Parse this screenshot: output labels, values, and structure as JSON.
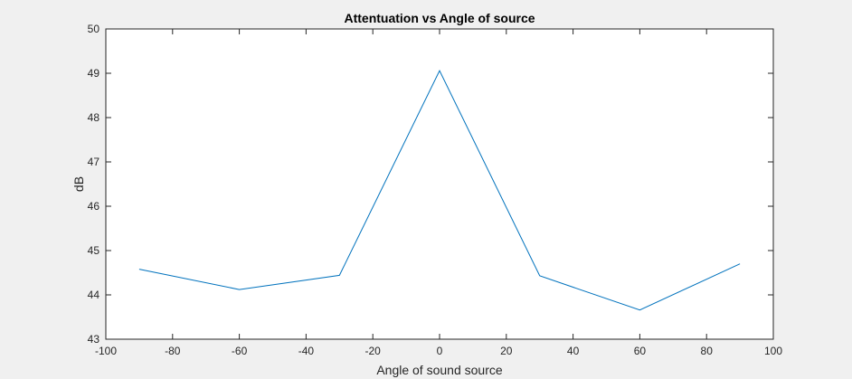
{
  "chart_data": {
    "type": "line",
    "title": "Attentuation vs Angle of source",
    "xlabel": "Angle of sound source",
    "ylabel": "dB",
    "xlim": [
      -100,
      100
    ],
    "ylim": [
      43,
      50
    ],
    "xticks": [
      "-100",
      "-80",
      "-60",
      "-40",
      "-20",
      "0",
      "20",
      "40",
      "60",
      "80",
      "100"
    ],
    "yticks": [
      "43",
      "44",
      "45",
      "46",
      "47",
      "48",
      "49",
      "50"
    ],
    "grid": false,
    "series": [
      {
        "x": [
          -90,
          -60,
          -30,
          0,
          30,
          60,
          90
        ],
        "values": [
          44.58,
          44.12,
          44.44,
          49.06,
          44.43,
          43.66,
          44.7
        ],
        "color": "#0072BD"
      }
    ]
  }
}
